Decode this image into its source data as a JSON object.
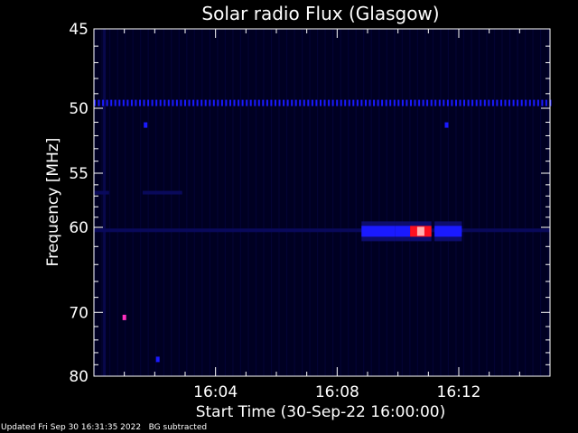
{
  "chart_data": {
    "type": "heatmap",
    "title": "Solar radio Flux (Glasgow)",
    "xlabel": "Start Time (30-Sep-22 16:00:00)",
    "ylabel": "Frequency [MHz]",
    "xlim_minutes": [
      0,
      15
    ],
    "ylim_mhz": [
      45,
      80
    ],
    "y_ticks": [
      45,
      50,
      55,
      60,
      70,
      80
    ],
    "x_ticks": [
      {
        "minute": 4,
        "label": "16:04"
      },
      {
        "minute": 8,
        "label": "16:08"
      },
      {
        "minute": 12,
        "label": "16:12"
      }
    ],
    "background_color": "#000022",
    "colors": {
      "low": "#0a0a60",
      "mid": "#1a1aff",
      "high": "#ff1020",
      "hot": "#ffb0b0"
    },
    "features": [
      {
        "kind": "hline",
        "freq": 49.6,
        "t0": 0,
        "t1": 15,
        "level": "mid",
        "note": "periodic interference line"
      },
      {
        "kind": "hline",
        "freq": 60.3,
        "t0": 0,
        "t1": 15,
        "level": "low"
      },
      {
        "kind": "hline",
        "freq": 56.7,
        "t0": 0,
        "t1": 0.5,
        "level": "low"
      },
      {
        "kind": "hline",
        "freq": 56.7,
        "t0": 1.6,
        "t1": 2.9,
        "level": "low"
      },
      {
        "kind": "burst",
        "freq": 60.4,
        "t0": 8.8,
        "t1": 9.9,
        "level": "mid"
      },
      {
        "kind": "burst",
        "freq": 60.4,
        "t0": 9.9,
        "t1": 10.4,
        "level": "mid"
      },
      {
        "kind": "burst",
        "freq": 60.4,
        "t0": 10.4,
        "t1": 11.1,
        "level": "high"
      },
      {
        "kind": "burst",
        "freq": 60.4,
        "t0": 11.2,
        "t1": 12.1,
        "level": "mid"
      },
      {
        "kind": "spot",
        "freq": 70.7,
        "t": 1.0,
        "level": "high"
      },
      {
        "kind": "spot",
        "freq": 51.2,
        "t": 1.7,
        "level": "mid"
      },
      {
        "kind": "spot",
        "freq": 51.2,
        "t": 11.6,
        "level": "mid"
      },
      {
        "kind": "spot",
        "freq": 77.1,
        "t": 2.1,
        "level": "mid"
      }
    ]
  },
  "footer": {
    "text": "Updated Fri Sep 30 16:31:35 2022   BG subtracted"
  }
}
